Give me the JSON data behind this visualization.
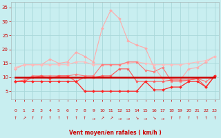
{
  "x": [
    0,
    1,
    2,
    3,
    4,
    5,
    6,
    7,
    8,
    9,
    10,
    11,
    12,
    13,
    14,
    15,
    16,
    17,
    18,
    19,
    20,
    21,
    22,
    23
  ],
  "series": [
    {
      "name": "rafales_high",
      "color": "#ffaaaa",
      "lw": 0.8,
      "marker": "D",
      "markersize": 2,
      "y": [
        13.0,
        14.5,
        14.5,
        14.5,
        16.5,
        15.0,
        15.5,
        19.0,
        17.5,
        15.5,
        27.5,
        34.0,
        31.0,
        23.0,
        21.5,
        20.5,
        13.5,
        9.5,
        9.5,
        9.0,
        13.0,
        13.5,
        15.5,
        17.5
      ]
    },
    {
      "name": "vent_moyen_high2",
      "color": "#ffbbbb",
      "lw": 0.8,
      "marker": "D",
      "markersize": 2,
      "y": [
        13.5,
        14.5,
        14.5,
        14.5,
        14.5,
        14.5,
        14.5,
        15.5,
        15.5,
        14.5,
        14.5,
        14.5,
        14.5,
        15.0,
        15.5,
        15.0,
        14.5,
        14.5,
        14.5,
        14.5,
        15.0,
        15.5,
        16.0,
        17.5
      ]
    },
    {
      "name": "vent_moyen_mid1",
      "color": "#ff7777",
      "lw": 0.8,
      "marker": "*",
      "markersize": 3,
      "y": [
        8.5,
        9.0,
        10.5,
        10.5,
        10.5,
        10.5,
        10.5,
        11.0,
        10.5,
        10.5,
        14.5,
        14.5,
        14.5,
        15.5,
        15.5,
        12.5,
        12.0,
        13.5,
        8.5,
        8.5,
        9.0,
        9.5,
        8.5,
        10.5
      ]
    },
    {
      "name": "vent_moyen_mid2",
      "color": "#ff5555",
      "lw": 0.8,
      "marker": "*",
      "markersize": 3,
      "y": [
        8.5,
        8.5,
        10.0,
        10.5,
        9.5,
        10.5,
        10.5,
        8.5,
        10.0,
        10.0,
        10.5,
        10.5,
        13.0,
        13.0,
        8.5,
        8.5,
        8.5,
        8.5,
        9.0,
        9.0,
        9.0,
        9.5,
        6.5,
        10.5
      ]
    },
    {
      "name": "min_line",
      "color": "#ff2222",
      "lw": 0.9,
      "marker": "D",
      "markersize": 2,
      "y": [
        8.5,
        8.5,
        8.5,
        8.5,
        8.5,
        8.5,
        8.5,
        8.5,
        5.0,
        5.0,
        5.0,
        5.0,
        5.0,
        5.0,
        5.0,
        8.5,
        5.5,
        5.5,
        6.5,
        6.5,
        8.5,
        8.5,
        6.5,
        10.5
      ]
    },
    {
      "name": "flat_line",
      "color": "#cc0000",
      "lw": 1.8,
      "marker": null,
      "markersize": 0,
      "y": [
        10.0,
        10.0,
        10.0,
        10.0,
        10.0,
        10.0,
        10.0,
        10.0,
        10.0,
        10.0,
        10.0,
        10.0,
        10.0,
        10.0,
        10.0,
        10.0,
        10.0,
        10.0,
        10.0,
        10.0,
        10.0,
        10.0,
        10.0,
        10.0
      ]
    }
  ],
  "xlim": [
    -0.5,
    23.5
  ],
  "ylim": [
    2,
    37
  ],
  "yticks": [
    5,
    10,
    15,
    20,
    25,
    30,
    35
  ],
  "yticklabels": [
    "5",
    "10",
    "15",
    "20",
    "25",
    "30",
    "35"
  ],
  "xticks": [
    0,
    1,
    2,
    3,
    4,
    5,
    6,
    7,
    8,
    9,
    10,
    11,
    12,
    13,
    14,
    15,
    16,
    17,
    18,
    19,
    20,
    21,
    22,
    23
  ],
  "xlabel": "Vent moyen/en rafales ( km/h )",
  "arrows": [
    "↑",
    "↗",
    "↑",
    "↑",
    "↑",
    "↑",
    "↑",
    "↑",
    "↑",
    "→",
    "↗",
    "↗",
    "→",
    "→",
    "↘",
    "→",
    "↘",
    "→",
    "↑",
    "↑",
    "↑",
    "↑",
    "↑",
    "↑"
  ],
  "bg_color": "#c8eef0",
  "grid_color": "#aad8da",
  "xlabel_color": "#cc0000",
  "tick_color": "#cc0000",
  "figsize": [
    3.2,
    2.0
  ],
  "dpi": 100
}
